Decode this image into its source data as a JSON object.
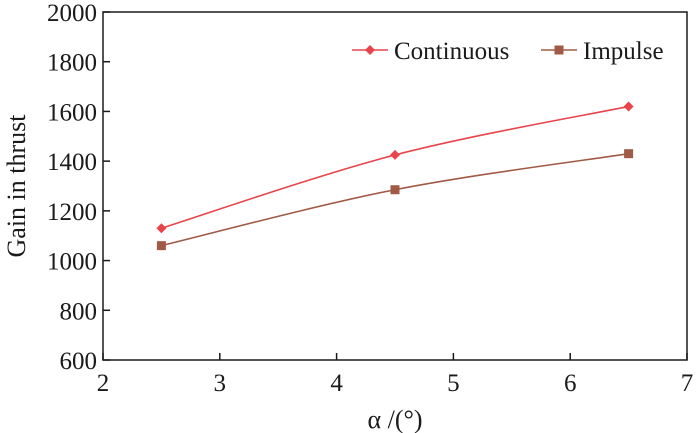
{
  "chart_data": {
    "type": "line",
    "xlabel": "α /(°)",
    "ylabel": "Gain in thrust",
    "xlim": [
      2,
      7
    ],
    "ylim": [
      600,
      2000
    ],
    "xticks": [
      2,
      3,
      4,
      5,
      6,
      7
    ],
    "yticks": [
      600,
      800,
      1000,
      1200,
      1400,
      1600,
      1800,
      2000
    ],
    "grid": false,
    "legend_position": "top-right",
    "x": [
      2.5,
      4.5,
      6.5
    ],
    "series": [
      {
        "name": "Continuous",
        "values": [
          1130,
          1425,
          1620
        ],
        "color": "#e8444b",
        "marker": "diamond"
      },
      {
        "name": "Impulse",
        "values": [
          1060,
          1285,
          1430
        ],
        "color": "#a15a45",
        "marker": "square"
      }
    ]
  }
}
